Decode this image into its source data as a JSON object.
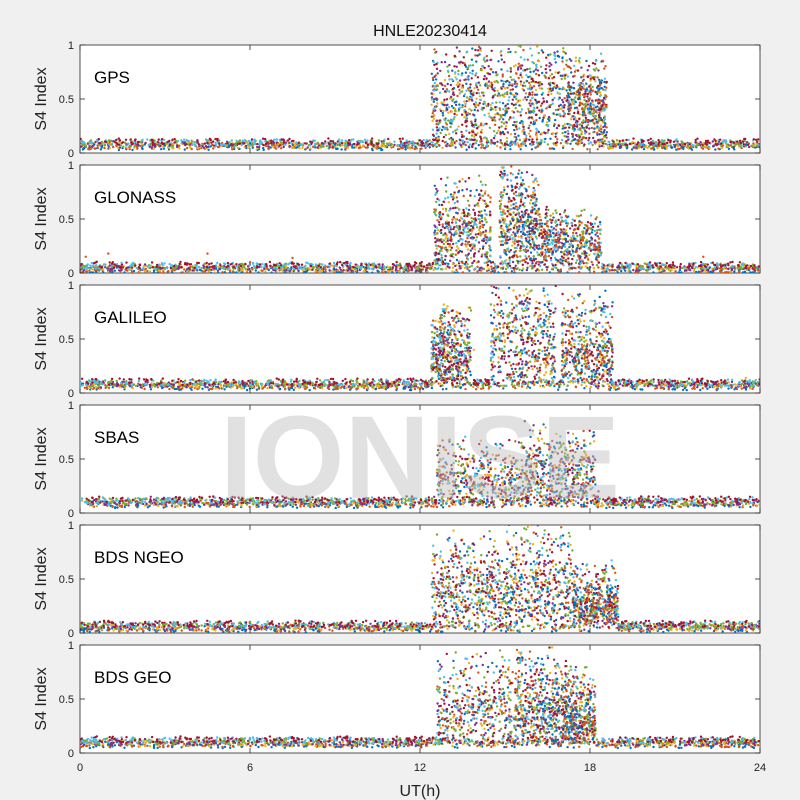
{
  "title": "HNLE20230414",
  "watermark": "IONISE",
  "chart_data": {
    "type": "scatter",
    "title": "HNLE20230414",
    "xlabel": "UT(h)",
    "ylabel": "S4 Index",
    "xlim": [
      0,
      24
    ],
    "ylim": [
      0,
      1
    ],
    "xticks": [
      "0",
      "6",
      "12",
      "18",
      "24"
    ],
    "yticks": [
      "0",
      "0.5",
      "1"
    ],
    "grid": false,
    "colors": [
      "#0072bd",
      "#d95319",
      "#edb120",
      "#7e2f8e",
      "#77ac30",
      "#4dbeee",
      "#a2142f"
    ],
    "panels": [
      {
        "label": "GPS",
        "quiet_level": 0.08,
        "scint_regions": [
          [
            12.4,
            14.8,
            0.55,
            0.95
          ],
          [
            14.8,
            17.2,
            0.6,
            1.0
          ],
          [
            17.2,
            18.6,
            0.45,
            0.85
          ]
        ],
        "series": [
          {
            "values": [
              [
                0.5,
                0.08
              ],
              [
                3.0,
                0.07
              ],
              [
                6.0,
                0.09
              ],
              [
                9.0,
                0.08
              ],
              [
                11.5,
                0.07
              ],
              [
                12.8,
                0.45
              ],
              [
                13.2,
                0.6
              ],
              [
                13.8,
                0.55
              ],
              [
                14.5,
                0.4
              ],
              [
                15.2,
                0.55
              ],
              [
                15.9,
                0.75
              ],
              [
                16.3,
                0.95
              ],
              [
                16.8,
                0.6
              ],
              [
                17.4,
                0.55
              ],
              [
                18.0,
                0.3
              ],
              [
                19.0,
                0.08
              ],
              [
                21.0,
                0.07
              ],
              [
                23.5,
                0.08
              ]
            ]
          },
          {
            "values": [
              [
                1.0,
                0.1
              ],
              [
                4.0,
                0.09
              ],
              [
                7.0,
                0.08
              ],
              [
                10.0,
                0.07
              ],
              [
                12.5,
                0.35
              ],
              [
                13.4,
                0.55
              ],
              [
                14.0,
                0.45
              ],
              [
                15.0,
                0.6
              ],
              [
                15.6,
                0.7
              ],
              [
                16.2,
                0.85
              ],
              [
                16.9,
                0.55
              ],
              [
                17.5,
                0.85
              ],
              [
                18.1,
                0.35
              ],
              [
                19.5,
                0.1
              ],
              [
                22.0,
                0.09
              ],
              [
                23.8,
                0.07
              ]
            ]
          },
          {
            "values": [
              [
                0.2,
                0.06
              ],
              [
                2.5,
                0.08
              ],
              [
                5.5,
                0.07
              ],
              [
                8.5,
                0.06
              ],
              [
                11.0,
                0.08
              ],
              [
                13.0,
                0.3
              ],
              [
                14.2,
                0.4
              ],
              [
                15.4,
                0.5
              ],
              [
                16.6,
                0.65
              ],
              [
                17.8,
                0.4
              ],
              [
                18.5,
                0.15
              ],
              [
                20.5,
                0.07
              ],
              [
                23.0,
                0.06
              ]
            ]
          }
        ]
      },
      {
        "label": "GLONASS",
        "quiet_level": 0.05,
        "scint_regions": [
          [
            12.5,
            14.5,
            0.3,
            0.85
          ],
          [
            14.8,
            16.2,
            0.45,
            1.0
          ],
          [
            16.2,
            18.4,
            0.25,
            0.55
          ]
        ],
        "series": [
          {
            "values": [
              [
                0.2,
                0.15
              ],
              [
                1.0,
                0.18
              ],
              [
                4.5,
                0.18
              ],
              [
                6.0,
                0.1
              ],
              [
                7.5,
                0.14
              ],
              [
                12.8,
                0.45
              ],
              [
                13.3,
                0.7
              ],
              [
                13.9,
                0.5
              ],
              [
                14.3,
                0.35
              ],
              [
                15.0,
                0.55
              ],
              [
                15.5,
                0.95
              ],
              [
                16.0,
                0.7
              ],
              [
                16.8,
                0.4
              ],
              [
                17.5,
                0.3
              ],
              [
                18.2,
                0.5
              ],
              [
                20.0,
                0.08
              ],
              [
                22.0,
                0.15
              ],
              [
                23.8,
                0.05
              ]
            ]
          },
          {
            "values": [
              [
                1.0,
                0.04
              ],
              [
                3.5,
                0.05
              ],
              [
                6.5,
                0.04
              ],
              [
                9.5,
                0.05
              ],
              [
                12.6,
                0.3
              ],
              [
                13.5,
                0.45
              ],
              [
                14.2,
                0.3
              ],
              [
                15.3,
                0.6
              ],
              [
                16.1,
                0.5
              ],
              [
                16.9,
                0.3
              ],
              [
                17.8,
                0.2
              ],
              [
                19.0,
                0.06
              ],
              [
                23.0,
                0.04
              ]
            ]
          }
        ]
      },
      {
        "label": "GALILEO",
        "quiet_level": 0.08,
        "scint_regions": [
          [
            12.4,
            13.8,
            0.3,
            0.8
          ],
          [
            14.5,
            16.8,
            0.5,
            1.0
          ],
          [
            17.0,
            18.8,
            0.3,
            0.9
          ]
        ],
        "series": [
          {
            "values": [
              [
                0.5,
                0.08
              ],
              [
                3.0,
                0.09
              ],
              [
                5.5,
                0.08
              ],
              [
                8.0,
                0.07
              ],
              [
                11.5,
                0.08
              ],
              [
                12.8,
                0.6
              ],
              [
                13.3,
                0.75
              ],
              [
                13.9,
                0.4
              ],
              [
                14.8,
                0.55
              ],
              [
                15.3,
                0.95
              ],
              [
                15.9,
                0.6
              ],
              [
                16.4,
                0.9
              ],
              [
                17.3,
                0.55
              ],
              [
                17.8,
                0.85
              ],
              [
                18.5,
                0.2
              ],
              [
                20.0,
                0.08
              ],
              [
                23.5,
                0.14
              ]
            ]
          },
          {
            "values": [
              [
                1.0,
                0.1
              ],
              [
                4.0,
                0.12
              ],
              [
                7.0,
                0.08
              ],
              [
                10.0,
                0.09
              ],
              [
                12.5,
                0.35
              ],
              [
                13.6,
                0.45
              ],
              [
                14.5,
                0.3
              ],
              [
                15.6,
                0.55
              ],
              [
                16.2,
                0.4
              ],
              [
                17.5,
                0.35
              ],
              [
                18.2,
                0.15
              ],
              [
                21.5,
                0.09
              ],
              [
                23.9,
                0.07
              ]
            ]
          }
        ]
      },
      {
        "label": "SBAS",
        "quiet_level": 0.1,
        "scint_regions": [
          [
            12.6,
            15.8,
            0.25,
            0.65
          ],
          [
            15.8,
            18.2,
            0.25,
            0.8
          ]
        ],
        "series": [
          {
            "values": [
              [
                0.5,
                0.12
              ],
              [
                2.5,
                0.15
              ],
              [
                5.0,
                0.13
              ],
              [
                7.5,
                0.12
              ],
              [
                10.0,
                0.13
              ],
              [
                12.5,
                0.15
              ],
              [
                13.0,
                0.55
              ],
              [
                13.6,
                0.5
              ],
              [
                14.2,
                0.45
              ],
              [
                15.0,
                0.5
              ],
              [
                15.7,
                0.85
              ],
              [
                16.3,
                0.45
              ],
              [
                17.0,
                0.5
              ],
              [
                17.7,
                0.6
              ],
              [
                18.3,
                0.2
              ],
              [
                20.0,
                0.12
              ],
              [
                22.0,
                0.13
              ],
              [
                23.8,
                0.12
              ]
            ]
          },
          {
            "values": [
              [
                1.0,
                0.08
              ],
              [
                3.5,
                0.09
              ],
              [
                6.5,
                0.08
              ],
              [
                9.5,
                0.08
              ],
              [
                12.8,
                0.3
              ],
              [
                14.0,
                0.35
              ],
              [
                15.2,
                0.3
              ],
              [
                16.6,
                0.4
              ],
              [
                17.5,
                0.35
              ],
              [
                18.6,
                0.1
              ],
              [
                23.0,
                0.08
              ]
            ]
          }
        ]
      },
      {
        "label": "BDS NGEO",
        "quiet_level": 0.06,
        "scint_regions": [
          [
            12.4,
            15.0,
            0.35,
            0.95
          ],
          [
            15.0,
            17.4,
            0.4,
            1.0
          ],
          [
            17.4,
            19.0,
            0.15,
            0.6
          ]
        ],
        "series": [
          {
            "values": [
              [
                0.5,
                0.07
              ],
              [
                3.0,
                0.08
              ],
              [
                6.0,
                0.1
              ],
              [
                9.0,
                0.08
              ],
              [
                11.5,
                0.09
              ],
              [
                12.8,
                0.55
              ],
              [
                13.4,
                0.7
              ],
              [
                13.9,
                0.5
              ],
              [
                14.6,
                0.8
              ],
              [
                15.2,
                0.65
              ],
              [
                15.8,
                0.85
              ],
              [
                16.4,
                0.95
              ],
              [
                17.0,
                0.6
              ],
              [
                17.8,
                0.35
              ],
              [
                18.5,
                0.5
              ],
              [
                19.5,
                0.1
              ],
              [
                22.0,
                0.08
              ],
              [
                23.8,
                0.07
              ]
            ]
          },
          {
            "values": [
              [
                1.0,
                0.05
              ],
              [
                4.0,
                0.06
              ],
              [
                7.5,
                0.07
              ],
              [
                10.5,
                0.06
              ],
              [
                12.6,
                0.35
              ],
              [
                13.8,
                0.45
              ],
              [
                15.0,
                0.5
              ],
              [
                16.1,
                0.55
              ],
              [
                17.2,
                0.4
              ],
              [
                18.2,
                0.15
              ],
              [
                21.0,
                0.06
              ],
              [
                23.5,
                0.05
              ]
            ]
          }
        ]
      },
      {
        "label": "BDS GEO",
        "quiet_level": 0.1,
        "scint_regions": [
          [
            12.6,
            15.4,
            0.3,
            0.9
          ],
          [
            15.4,
            17.0,
            0.35,
            0.95
          ],
          [
            17.0,
            18.2,
            0.2,
            0.8
          ]
        ],
        "series": [
          {
            "values": [
              [
                0.5,
                0.13
              ],
              [
                3.0,
                0.14
              ],
              [
                6.0,
                0.14
              ],
              [
                9.0,
                0.13
              ],
              [
                12.0,
                0.12
              ],
              [
                12.9,
                0.65
              ],
              [
                13.5,
                0.55
              ],
              [
                14.1,
                0.45
              ],
              [
                14.8,
                0.5
              ],
              [
                15.5,
                0.6
              ],
              [
                16.0,
                0.8
              ],
              [
                16.5,
                0.9
              ],
              [
                17.2,
                0.7
              ],
              [
                17.8,
                0.4
              ],
              [
                18.5,
                0.12
              ],
              [
                21.0,
                0.13
              ],
              [
                23.8,
                0.14
              ]
            ]
          },
          {
            "values": [
              [
                1.0,
                0.08
              ],
              [
                4.0,
                0.07
              ],
              [
                7.0,
                0.08
              ],
              [
                10.0,
                0.07
              ],
              [
                12.7,
                0.3
              ],
              [
                13.9,
                0.35
              ],
              [
                15.0,
                0.3
              ],
              [
                16.3,
                0.45
              ],
              [
                17.3,
                0.3
              ],
              [
                18.3,
                0.08
              ],
              [
                22.0,
                0.07
              ],
              [
                23.5,
                0.08
              ]
            ]
          }
        ]
      }
    ]
  }
}
